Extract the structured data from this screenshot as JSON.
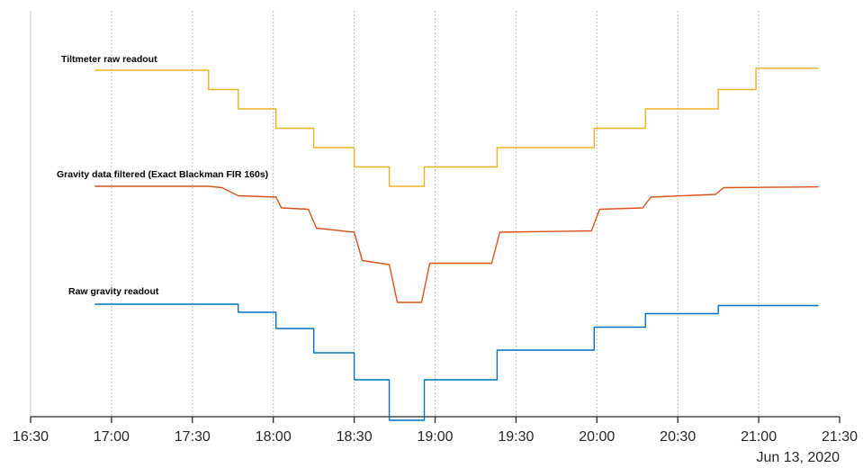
{
  "chart_data": {
    "type": "line",
    "title": "",
    "xlabel": "",
    "ylabel": "",
    "x_unit": "time",
    "xlim": [
      "16:30",
      "21:30"
    ],
    "x_ticks": [
      "16:30",
      "17:00",
      "17:30",
      "18:00",
      "18:30",
      "19:00",
      "19:30",
      "20:00",
      "20:30",
      "21:00",
      "21:30"
    ],
    "date_label": "Jun 13, 2020",
    "grid": "vertical-dashed",
    "y_axis_visible": false,
    "legend": "inline-labels",
    "series": [
      {
        "name": "Tiltmeter raw readout",
        "color": "#EDB120",
        "y_unit": "relative",
        "points": [
          [
            "16:54",
            0
          ],
          [
            "17:36",
            0
          ],
          [
            "17:36",
            -1
          ],
          [
            "17:47",
            -1
          ],
          [
            "17:47",
            -2
          ],
          [
            "18:01",
            -2
          ],
          [
            "18:01",
            -3
          ],
          [
            "18:15",
            -3
          ],
          [
            "18:15",
            -4
          ],
          [
            "18:30",
            -4
          ],
          [
            "18:30",
            -5
          ],
          [
            "18:43",
            -5
          ],
          [
            "18:43",
            -6
          ],
          [
            "18:56",
            -6
          ],
          [
            "18:56",
            -5
          ],
          [
            "19:23",
            -5
          ],
          [
            "19:23",
            -4
          ],
          [
            "19:59",
            -4
          ],
          [
            "19:59",
            -3
          ],
          [
            "20:18",
            -3
          ],
          [
            "20:18",
            -2
          ],
          [
            "20:45",
            -2
          ],
          [
            "20:45",
            -1
          ],
          [
            "20:59",
            -1
          ],
          [
            "20:59",
            0.1
          ],
          [
            "21:22",
            0.1
          ]
        ]
      },
      {
        "name": "Gravity data filtered (Exact Blackman FIR 160s)",
        "color": "#D95319",
        "y_unit": "relative",
        "points": [
          [
            "16:54",
            0
          ],
          [
            "17:36",
            0
          ],
          [
            "17:41",
            -0.05
          ],
          [
            "17:47",
            -0.35
          ],
          [
            "18:01",
            -0.4
          ],
          [
            "18:03",
            -0.8
          ],
          [
            "18:13",
            -0.85
          ],
          [
            "18:16",
            -1.55
          ],
          [
            "18:30",
            -1.7
          ],
          [
            "18:33",
            -2.75
          ],
          [
            "18:43",
            -2.9
          ],
          [
            "18:46",
            -4.3
          ],
          [
            "18:55",
            -4.3
          ],
          [
            "18:58",
            -2.85
          ],
          [
            "19:21",
            -2.85
          ],
          [
            "19:24",
            -1.7
          ],
          [
            "19:58",
            -1.65
          ],
          [
            "20:01",
            -0.85
          ],
          [
            "20:17",
            -0.8
          ],
          [
            "20:20",
            -0.4
          ],
          [
            "20:44",
            -0.3
          ],
          [
            "20:47",
            -0.05
          ],
          [
            "21:22",
            -0.02
          ]
        ]
      },
      {
        "name": "Raw gravity readout",
        "color": "#0072BD",
        "y_unit": "relative",
        "points": [
          [
            "16:54",
            0
          ],
          [
            "17:47",
            0
          ],
          [
            "17:47",
            -0.3
          ],
          [
            "18:01",
            -0.3
          ],
          [
            "18:01",
            -0.9
          ],
          [
            "18:15",
            -0.9
          ],
          [
            "18:15",
            -1.8
          ],
          [
            "18:30",
            -1.8
          ],
          [
            "18:30",
            -2.8
          ],
          [
            "18:43",
            -2.8
          ],
          [
            "18:43",
            -4.3
          ],
          [
            "18:56",
            -4.3
          ],
          [
            "18:56",
            -2.8
          ],
          [
            "19:23",
            -2.8
          ],
          [
            "19:23",
            -1.7
          ],
          [
            "19:59",
            -1.7
          ],
          [
            "19:59",
            -0.85
          ],
          [
            "20:18",
            -0.85
          ],
          [
            "20:18",
            -0.35
          ],
          [
            "20:45",
            -0.35
          ],
          [
            "20:45",
            -0.05
          ],
          [
            "21:22",
            -0.05
          ]
        ]
      }
    ]
  }
}
